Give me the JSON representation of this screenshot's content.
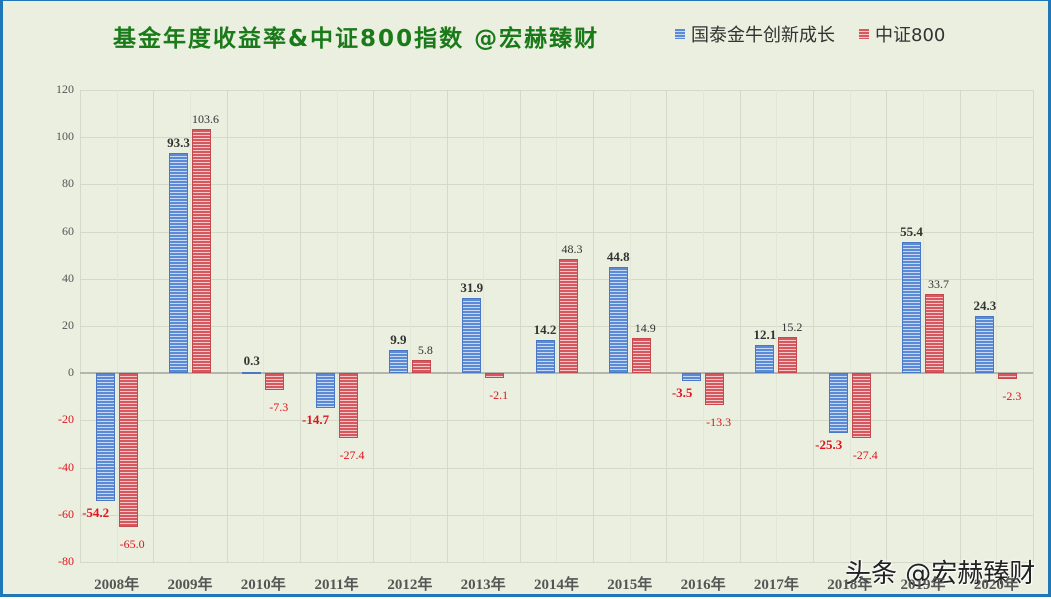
{
  "chart_data": {
    "type": "bar",
    "title": "基金年度收益率&中证800指数 @宏赫臻财",
    "xlabel": "",
    "ylabel": "",
    "ylim": [
      -80,
      120
    ],
    "yticks": [
      120,
      100,
      80,
      60,
      40,
      20,
      0,
      -20,
      -40,
      -60,
      -80
    ],
    "ytick_labels": [
      "120",
      "100",
      "80",
      "60",
      "40",
      "20",
      "0",
      "-20",
      "-40",
      "-60",
      "-80"
    ],
    "grid": true,
    "legend_position": "top-right",
    "categories": [
      "2008年",
      "2009年",
      "2010年",
      "2011年",
      "2012年",
      "2013年",
      "2014年",
      "2015年",
      "2016年",
      "2017年",
      "2018年",
      "2019年",
      "2020年"
    ],
    "series": [
      {
        "name": "国泰金牛创新成长",
        "color": "#5b8ad6",
        "values": [
          -54.2,
          93.3,
          0.3,
          -14.7,
          9.9,
          31.9,
          14.2,
          44.8,
          -3.5,
          12.1,
          -25.3,
          55.4,
          24.3
        ],
        "labels": [
          "-54.2",
          "93.3",
          "0.3",
          "-14.7",
          "9.9",
          "31.9",
          "14.2",
          "44.8",
          "-3.5",
          "12.1",
          "-25.3",
          "55.4",
          "24.3"
        ]
      },
      {
        "name": "中证800",
        "color": "#d6585e",
        "values": [
          -65.0,
          103.6,
          -7.3,
          -27.4,
          5.8,
          -2.1,
          48.3,
          14.9,
          -13.3,
          15.2,
          -27.4,
          33.7,
          -2.3
        ],
        "labels": [
          "-65.0",
          "103.6",
          "-7.3",
          "-27.4",
          "5.8",
          "-2.1",
          "48.3",
          "14.9",
          "-13.3",
          "15.2",
          "-27.4",
          "33.7",
          "-2.3"
        ]
      }
    ]
  },
  "colors": {
    "title": "#1a7a1a",
    "positive_label": "#333333",
    "negative_label": "#e0141e",
    "background": "#ebefdf",
    "border": "#1f77b8"
  },
  "watermark": "头条 @宏赫臻财"
}
